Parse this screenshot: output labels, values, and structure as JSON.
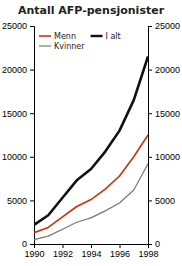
{
  "chart_data": {
    "type": "line",
    "title": "Antall AFP-pensjonister",
    "x": [
      1990,
      1991,
      1992,
      1993,
      1994,
      1995,
      1996,
      1997,
      1998
    ],
    "series": [
      {
        "name": "Menn",
        "color": "#cc3300",
        "values": [
          1300,
          1900,
          3100,
          4300,
          5100,
          6300,
          7800,
          10000,
          12500
        ]
      },
      {
        "name": "I alt",
        "color": "#111111",
        "values": [
          2200,
          3300,
          5300,
          7300,
          8600,
          10600,
          13000,
          16500,
          21500
        ]
      },
      {
        "name": "Kvinner",
        "color": "#777777",
        "values": [
          500,
          900,
          1700,
          2500,
          3000,
          3800,
          4700,
          6200,
          9200
        ]
      }
    ],
    "xlim": [
      1990,
      1998
    ],
    "xticks": [
      1990,
      1992,
      1994,
      1996,
      1998
    ],
    "ylim": [
      0,
      25000
    ],
    "yticks": [
      0,
      5000,
      10000,
      15000,
      20000,
      25000
    ],
    "y2lim": [
      0,
      25000
    ],
    "y2ticks": [
      0,
      5000,
      10000,
      15000,
      20000,
      25000
    ],
    "legend": "upper left",
    "grid": false
  }
}
